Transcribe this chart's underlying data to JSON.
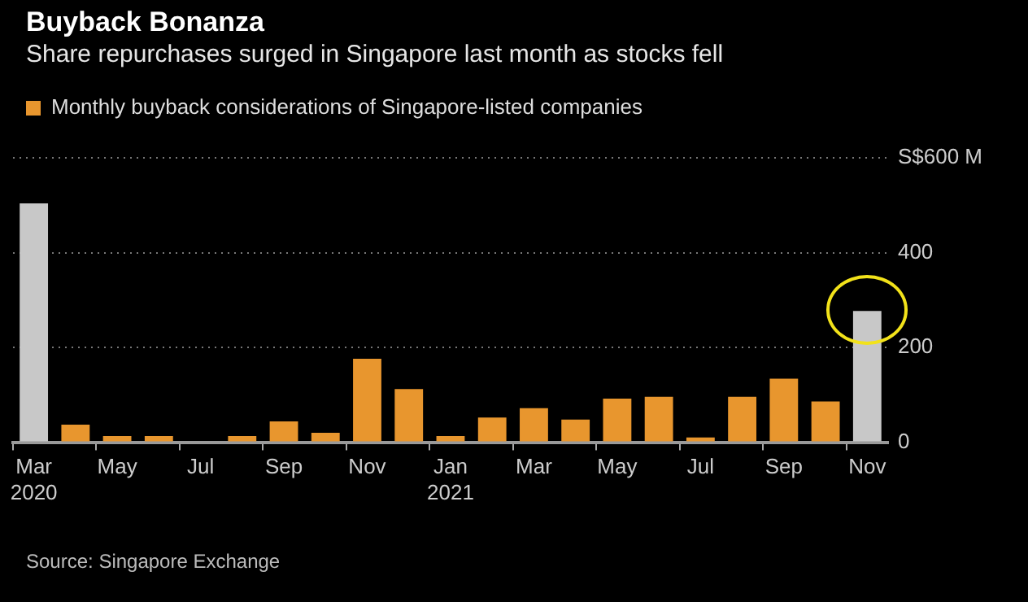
{
  "chart_data": {
    "type": "bar",
    "title": "Buyback Bonanza",
    "subtitle": "Share repurchases surged in Singapore last month as stocks fell",
    "categories": [
      "Mar 2020",
      null,
      "May",
      null,
      "Jul",
      null,
      "Sep",
      null,
      "Nov",
      null,
      "Jan 2021",
      null,
      "Mar",
      null,
      "May",
      null,
      "Jul",
      null,
      "Sep",
      null,
      "Nov"
    ],
    "series": [
      {
        "name": "Monthly buyback considerations of Singapore-listed companies",
        "color": "#e8962e",
        "colors": [
          "#c8c8c8",
          "#e8962e",
          "#e8962e",
          "#e8962e",
          "#e8962e",
          "#e8962e",
          "#e8962e",
          "#e8962e",
          "#e8962e",
          "#e8962e",
          "#e8962e",
          "#e8962e",
          "#e8962e",
          "#e8962e",
          "#e8962e",
          "#e8962e",
          "#e8962e",
          "#e8962e",
          "#e8962e",
          "#e8962e",
          "#c8c8c8"
        ],
        "values": [
          504,
          37,
          13,
          13,
          2,
          13,
          44,
          20,
          176,
          112,
          13,
          52,
          72,
          48,
          92,
          96,
          10,
          96,
          134,
          86,
          277
        ]
      }
    ],
    "ylim": [
      0,
      600
    ],
    "yticks": [
      0,
      200,
      400,
      {
        "value": 600,
        "label": "S$600 M"
      }
    ],
    "grid": "y",
    "legend": "top left",
    "annotations": [
      "Source: Singapore Exchange"
    ]
  }
}
